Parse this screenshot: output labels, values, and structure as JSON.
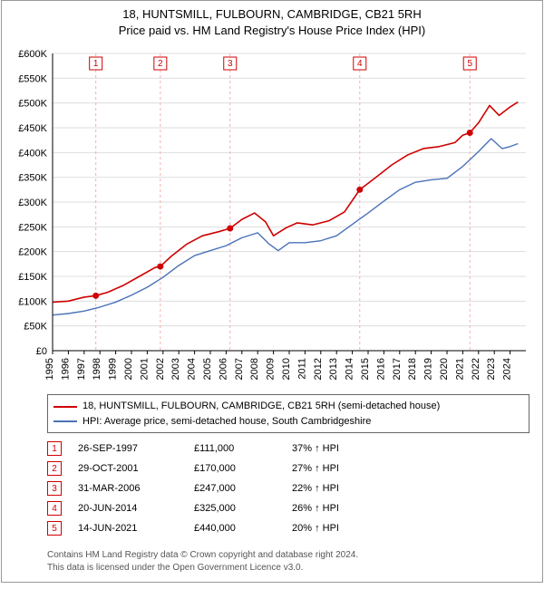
{
  "title": {
    "line1": "18, HUNTSMILL, FULBOURN, CAMBRIDGE, CB21 5RH",
    "line2": "Price paid vs. HM Land Registry's House Price Index (HPI)"
  },
  "chart": {
    "type": "line",
    "background_color": "#ffffff",
    "grid_color": "#dddddd",
    "axis_color": "#000000",
    "label_fontsize": 11,
    "x": {
      "min": 1995,
      "max": 2025,
      "ticks": [
        1995,
        1996,
        1997,
        1998,
        1999,
        2000,
        2001,
        2002,
        2003,
        2004,
        2005,
        2006,
        2007,
        2008,
        2009,
        2010,
        2011,
        2012,
        2013,
        2014,
        2015,
        2016,
        2017,
        2018,
        2019,
        2020,
        2021,
        2022,
        2023,
        2024
      ]
    },
    "y": {
      "min": 0,
      "max": 600000,
      "tick_step": 50000,
      "tick_labels": [
        "£0",
        "£50K",
        "£100K",
        "£150K",
        "£200K",
        "£250K",
        "£300K",
        "£350K",
        "£400K",
        "£450K",
        "£500K",
        "£550K",
        "£600K"
      ]
    },
    "series": [
      {
        "name": "price_paid",
        "color": "#d00000",
        "width": 1.6,
        "points": [
          [
            1995.0,
            98000
          ],
          [
            1996.0,
            100000
          ],
          [
            1997.0,
            108000
          ],
          [
            1997.74,
            111000
          ],
          [
            1998.5,
            118000
          ],
          [
            1999.5,
            132000
          ],
          [
            2000.5,
            150000
          ],
          [
            2001.5,
            168000
          ],
          [
            2001.83,
            170000
          ],
          [
            2002.5,
            190000
          ],
          [
            2003.5,
            215000
          ],
          [
            2004.5,
            232000
          ],
          [
            2005.5,
            240000
          ],
          [
            2006.25,
            247000
          ],
          [
            2007.0,
            265000
          ],
          [
            2007.8,
            278000
          ],
          [
            2008.5,
            260000
          ],
          [
            2009.0,
            232000
          ],
          [
            2009.8,
            248000
          ],
          [
            2010.5,
            258000
          ],
          [
            2011.5,
            254000
          ],
          [
            2012.5,
            262000
          ],
          [
            2013.5,
            280000
          ],
          [
            2014.47,
            325000
          ],
          [
            2015.5,
            350000
          ],
          [
            2016.5,
            375000
          ],
          [
            2017.5,
            395000
          ],
          [
            2018.5,
            408000
          ],
          [
            2019.5,
            412000
          ],
          [
            2020.5,
            420000
          ],
          [
            2021.0,
            435000
          ],
          [
            2021.45,
            440000
          ],
          [
            2022.0,
            460000
          ],
          [
            2022.7,
            495000
          ],
          [
            2023.3,
            475000
          ],
          [
            2024.0,
            492000
          ],
          [
            2024.5,
            502000
          ]
        ]
      },
      {
        "name": "hpi",
        "color": "#4a72b8",
        "width": 1.4,
        "points": [
          [
            1995.0,
            72000
          ],
          [
            1996.0,
            75000
          ],
          [
            1997.0,
            80000
          ],
          [
            1998.0,
            88000
          ],
          [
            1999.0,
            98000
          ],
          [
            2000.0,
            112000
          ],
          [
            2001.0,
            128000
          ],
          [
            2002.0,
            148000
          ],
          [
            2003.0,
            172000
          ],
          [
            2004.0,
            192000
          ],
          [
            2005.0,
            202000
          ],
          [
            2006.0,
            212000
          ],
          [
            2007.0,
            228000
          ],
          [
            2008.0,
            238000
          ],
          [
            2008.7,
            216000
          ],
          [
            2009.3,
            202000
          ],
          [
            2010.0,
            218000
          ],
          [
            2011.0,
            218000
          ],
          [
            2012.0,
            222000
          ],
          [
            2013.0,
            232000
          ],
          [
            2014.0,
            255000
          ],
          [
            2015.0,
            278000
          ],
          [
            2016.0,
            302000
          ],
          [
            2017.0,
            325000
          ],
          [
            2018.0,
            340000
          ],
          [
            2019.0,
            345000
          ],
          [
            2020.0,
            348000
          ],
          [
            2021.0,
            372000
          ],
          [
            2022.0,
            402000
          ],
          [
            2022.8,
            428000
          ],
          [
            2023.5,
            408000
          ],
          [
            2024.0,
            412000
          ],
          [
            2024.5,
            418000
          ]
        ]
      }
    ],
    "sale_markers": [
      {
        "n": "1",
        "year": 1997.74,
        "price": 111000
      },
      {
        "n": "2",
        "year": 2001.83,
        "price": 170000
      },
      {
        "n": "3",
        "year": 2006.25,
        "price": 247000
      },
      {
        "n": "4",
        "year": 2014.47,
        "price": 325000
      },
      {
        "n": "5",
        "year": 2021.45,
        "price": 440000
      }
    ],
    "marker_line_color": "#f4b0b0",
    "marker_dot_color": "#d00000",
    "marker_box_stroke": "#d00000"
  },
  "legend": {
    "items": [
      {
        "color": "#d00000",
        "label": "18, HUNTSMILL, FULBOURN, CAMBRIDGE, CB21 5RH (semi-detached house)"
      },
      {
        "color": "#4a72b8",
        "label": "HPI: Average price, semi-detached house, South Cambridgeshire"
      }
    ]
  },
  "sales": [
    {
      "n": "1",
      "date": "26-SEP-1997",
      "price": "£111,000",
      "pct": "37% ↑ HPI"
    },
    {
      "n": "2",
      "date": "29-OCT-2001",
      "price": "£170,000",
      "pct": "27% ↑ HPI"
    },
    {
      "n": "3",
      "date": "31-MAR-2006",
      "price": "£247,000",
      "pct": "22% ↑ HPI"
    },
    {
      "n": "4",
      "date": "20-JUN-2014",
      "price": "£325,000",
      "pct": "26% ↑ HPI"
    },
    {
      "n": "5",
      "date": "14-JUN-2021",
      "price": "£440,000",
      "pct": "20% ↑ HPI"
    }
  ],
  "footer": {
    "line1": "Contains HM Land Registry data © Crown copyright and database right 2024.",
    "line2": "This data is licensed under the Open Government Licence v3.0."
  }
}
